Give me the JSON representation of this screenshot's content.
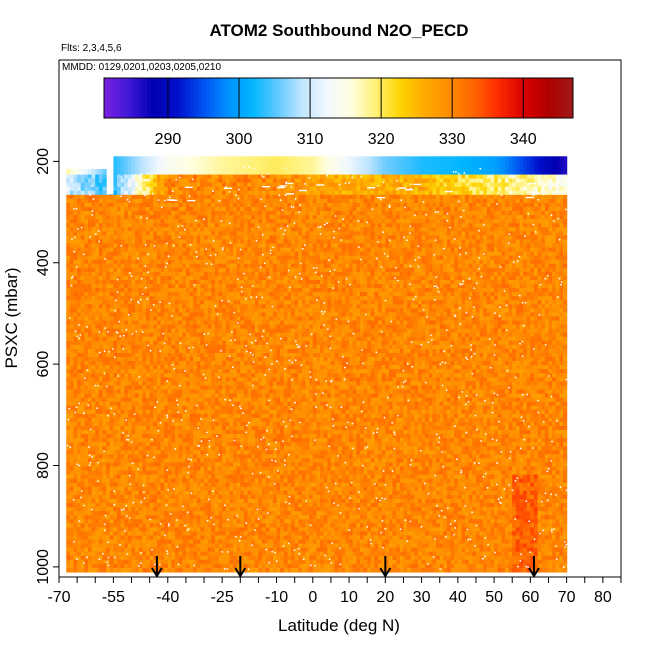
{
  "chart_data": {
    "type": "heatmap",
    "title": "ATOM2 Southbound N2O_PECD",
    "flights_note": "Flts: 2,3,4,5,6",
    "dates_note": "MMDD: 0129,0201,0203,0205,0210",
    "xlabel": "Latitude (deg N)",
    "ylabel": "PSXC (mbar)",
    "xlim": [
      -70,
      85
    ],
    "ylim": [
      1020,
      0
    ],
    "xticks": [
      -70,
      -65,
      -60,
      -55,
      -50,
      -45,
      -40,
      -35,
      -30,
      -25,
      -20,
      -15,
      -10,
      -5,
      0,
      5,
      10,
      15,
      20,
      25,
      30,
      35,
      40,
      45,
      50,
      55,
      60,
      65,
      70,
      75,
      80,
      85
    ],
    "xtick_labels": [
      "-70",
      "-55",
      "-40",
      "-25",
      "-10",
      "0",
      "10",
      "20",
      "30",
      "40",
      "50",
      "60",
      "70",
      "80"
    ],
    "yticks": [
      200,
      400,
      600,
      800,
      1000
    ],
    "ytick_labels": [
      "200",
      "400",
      "600",
      "800",
      "1000"
    ],
    "colorbar": {
      "min": 281,
      "max": 347,
      "ticks": [
        290,
        300,
        310,
        320,
        330,
        340
      ],
      "tick_labels": [
        "290",
        "300",
        "310",
        "320",
        "330",
        "340"
      ],
      "segment_edges": [
        281,
        290,
        300,
        310,
        320,
        330,
        340,
        347
      ]
    },
    "arrow_latitudes": [
      -43,
      -20,
      20,
      61
    ],
    "column_ranges": [
      {
        "lat_from": -68,
        "lat_to": -57,
        "p_top": 215
      },
      {
        "lat_from": -57,
        "lat_to": -55,
        "p_top": 265
      },
      {
        "lat_from": -55,
        "lat_to": -53,
        "p_top": 190
      },
      {
        "lat_from": -53,
        "lat_to": 70,
        "p_top": 190
      }
    ],
    "z_profile": {
      "lat_stations": [
        -68,
        -55,
        -40,
        -25,
        -10,
        0,
        10,
        20,
        30,
        40,
        50,
        60,
        70
      ],
      "high_level": {
        "pressure_range": [
          190,
          225
        ],
        "values": [
          318,
          303,
          314,
          318,
          320,
          318,
          312,
          306,
          303,
          302,
          300,
          293,
          286
        ]
      },
      "mid_level": {
        "pressure_range": [
          225,
          265
        ],
        "values": [
          310,
          303,
          330,
          330,
          330,
          328,
          326,
          326,
          326,
          322,
          320,
          318,
          314
        ]
      },
      "lower_value": 330
    }
  },
  "colors": {
    "colorscale": [
      "#7b1fe0",
      "#4019d8",
      "#0000b0",
      "#0010cc",
      "#0050f0",
      "#0090ff",
      "#00b6ff",
      "#5ec8ff",
      "#bde5ff",
      "#f2f8ff",
      "#ffffe0",
      "#fff176",
      "#ffd400",
      "#ffaa00",
      "#ff8c00",
      "#ff6400",
      "#ff2a00",
      "#d90000",
      "#b00000",
      "#a01818"
    ],
    "frame": "#000000",
    "markers": "#ffffff",
    "arrows": "#000000"
  }
}
